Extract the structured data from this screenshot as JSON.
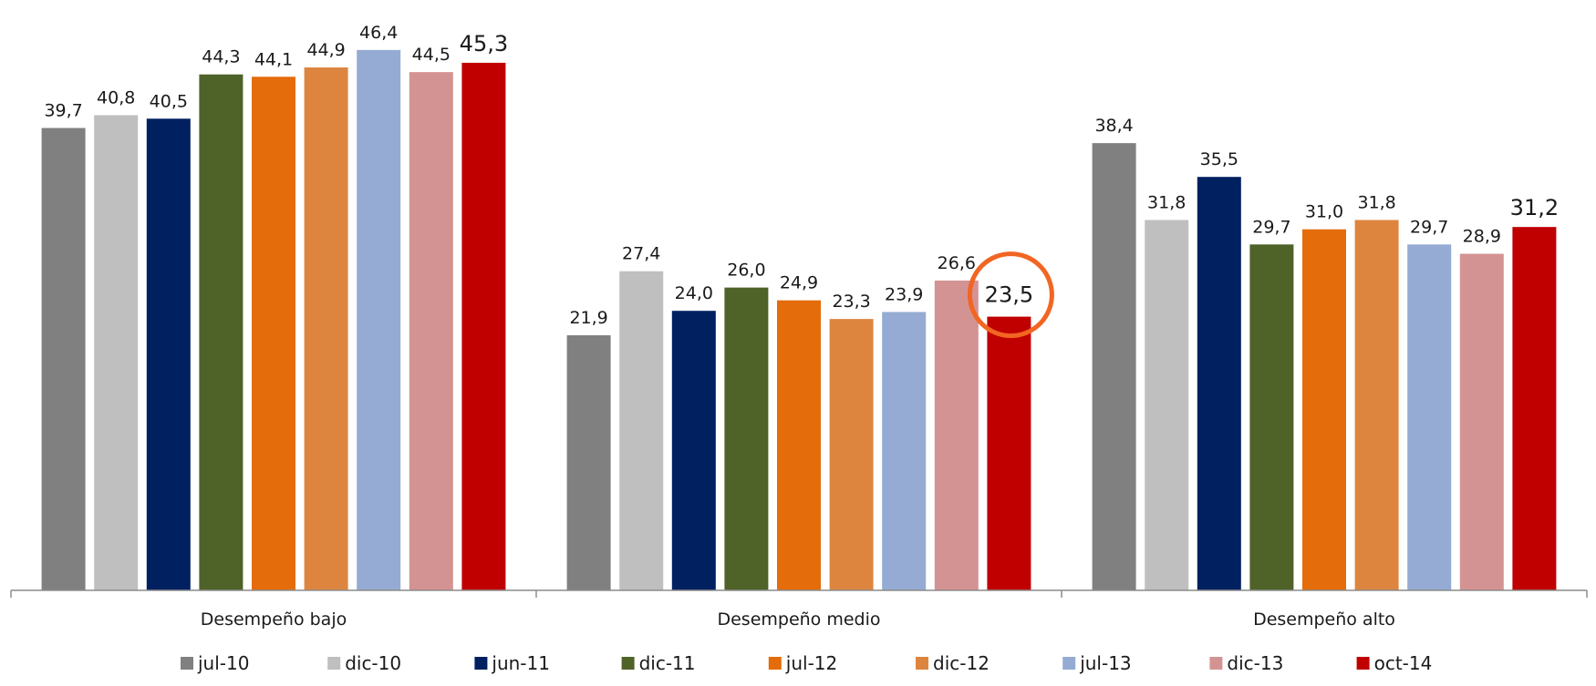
{
  "chart_data": {
    "type": "bar",
    "title": "",
    "xlabel": "",
    "ylabel": "",
    "ylim": [
      0,
      48.5
    ],
    "grid": false,
    "legend_position": "bottom",
    "categories": [
      "Desempeño bajo",
      "Desempeño medio",
      "Desempeño alto"
    ],
    "series": [
      {
        "name": "jul-10",
        "color": "#808080",
        "values": [
          39.7,
          21.9,
          38.4
        ],
        "labels": [
          "39,7",
          "21,9",
          "38,4"
        ]
      },
      {
        "name": "dic-10",
        "color": "#bfbfbf",
        "values": [
          40.8,
          27.4,
          31.8
        ],
        "labels": [
          "40,8",
          "27,4",
          "31,8"
        ]
      },
      {
        "name": "jun-11",
        "color": "#002060",
        "values": [
          40.5,
          24.0,
          35.5
        ],
        "labels": [
          "40,5",
          "24,0",
          "35,5"
        ]
      },
      {
        "name": "dic-11",
        "color": "#4f6228",
        "values": [
          44.3,
          26.0,
          29.7
        ],
        "labels": [
          "44,3",
          "26,0",
          "29,7"
        ]
      },
      {
        "name": "jul-12",
        "color": "#e46c0a",
        "values": [
          44.1,
          24.9,
          31.0
        ],
        "labels": [
          "44,1",
          "24,9",
          "31,0"
        ]
      },
      {
        "name": "dic-12",
        "color": "#dd853f",
        "values": [
          44.9,
          23.3,
          31.8
        ],
        "labels": [
          "44,9",
          "23,3",
          "31,8"
        ]
      },
      {
        "name": "jul-13",
        "color": "#95abd3",
        "values": [
          46.4,
          23.9,
          29.7
        ],
        "labels": [
          "46,4",
          "23,9",
          "29,7"
        ]
      },
      {
        "name": "dic-13",
        "color": "#d49393",
        "values": [
          44.5,
          26.6,
          28.9
        ],
        "labels": [
          "44,5",
          "26,6",
          "28,9"
        ]
      },
      {
        "name": "oct-14",
        "color": "#c00000",
        "values": [
          45.3,
          23.5,
          31.2
        ],
        "labels": [
          "45,3",
          "23,5",
          "31,2"
        ],
        "emphasized": true
      }
    ],
    "highlight": {
      "series": "oct-14",
      "category": "Desempeño medio",
      "shape": "circle",
      "color": "#f26522"
    },
    "axis_color": "#8c8c8c"
  }
}
